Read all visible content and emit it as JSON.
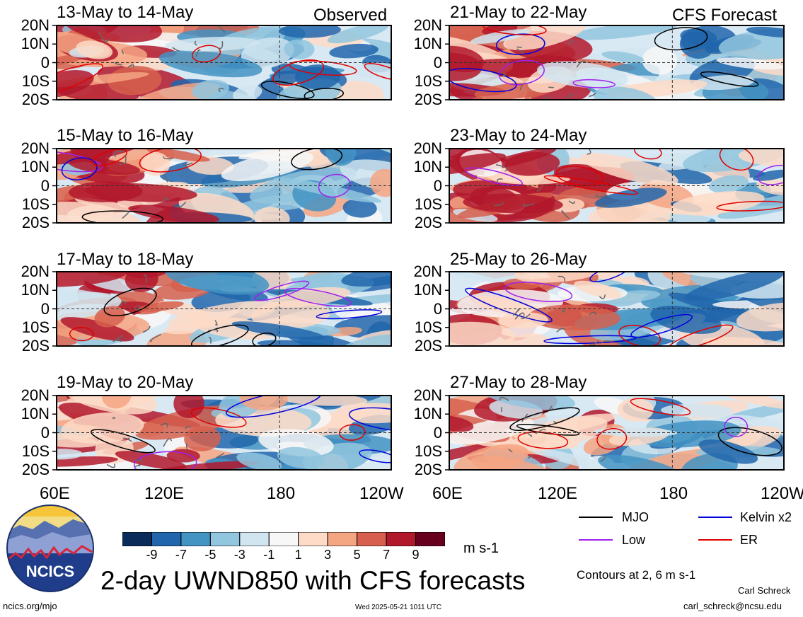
{
  "header": {
    "observed_label": "Observed",
    "forecast_label": "CFS Forecast"
  },
  "panels": [
    {
      "title": "13-May to 14-May",
      "type": "observed"
    },
    {
      "title": "15-May to 16-May",
      "type": "observed"
    },
    {
      "title": "17-May to 18-May",
      "type": "observed"
    },
    {
      "title": "19-May to 20-May",
      "type": "observed"
    },
    {
      "title": "21-May to 22-May",
      "type": "forecast"
    },
    {
      "title": "23-May to 24-May",
      "type": "forecast"
    },
    {
      "title": "25-May to 26-May",
      "type": "forecast"
    },
    {
      "title": "27-May to 28-May",
      "type": "forecast"
    }
  ],
  "axes": {
    "y_ticks": [
      "20N",
      "10N",
      "0",
      "10S",
      "20S"
    ],
    "x_ticks": [
      "60E",
      "120E",
      "180",
      "120W"
    ]
  },
  "colorbar": {
    "labels": [
      "-9",
      "-7",
      "-5",
      "-3",
      "-1",
      "1",
      "3",
      "5",
      "7",
      "9"
    ],
    "colors": [
      "#0b2c5a",
      "#2166ac",
      "#4393c3",
      "#92c5de",
      "#d1e5f0",
      "#f7f7f7",
      "#fddbc7",
      "#f4a582",
      "#d6604d",
      "#b2182b",
      "#67001f"
    ],
    "units": "m s-1"
  },
  "legend": {
    "items": [
      {
        "label": "MJO",
        "color": "#000000"
      },
      {
        "label": "Kelvin x2",
        "color": "#0000dd"
      },
      {
        "label": "Low",
        "color": "#a020f0"
      },
      {
        "label": "ER",
        "color": "#e00000"
      }
    ],
    "contours_note": "Contours at 2, 6 m s-1"
  },
  "footer": {
    "main_title": "2-day UWND850 with CFS forecasts",
    "left_url": "ncics.org/mjo",
    "timestamp": "Wed 2025-05-21 1011 UTC",
    "author": "Carl Schreck",
    "email": "carl_schreck@ncsu.edu",
    "logo_text": "NCICS"
  },
  "chart_data": {
    "type": "heatmap",
    "title": "2-day UWND850 with CFS forecasts",
    "variable": "850 hPa zonal wind anomaly",
    "units": "m s-1",
    "x_range": [
      "60E",
      "120W"
    ],
    "y_range": [
      "20S",
      "20N"
    ],
    "color_levels": [
      -9,
      -7,
      -5,
      -3,
      -1,
      1,
      3,
      5,
      7,
      9
    ],
    "contour_levels": [
      2,
      6
    ],
    "series": [
      {
        "name": "MJO",
        "color": "#000000"
      },
      {
        "name": "Kelvin x2",
        "color": "#0000dd"
      },
      {
        "name": "Low",
        "color": "#a020f0"
      },
      {
        "name": "ER",
        "color": "#e00000"
      }
    ]
  }
}
